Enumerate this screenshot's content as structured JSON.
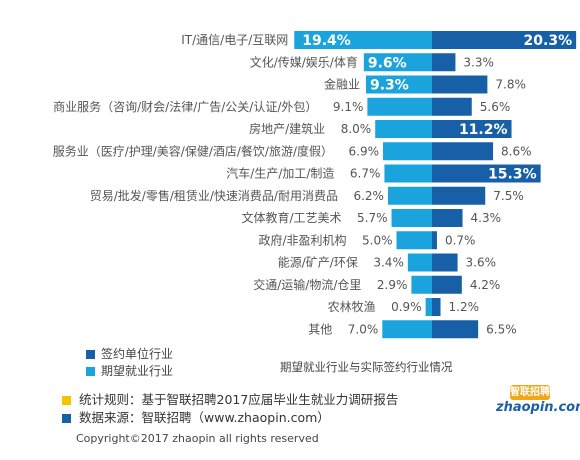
{
  "chart_data": {
    "type": "bar",
    "categories": [
      "IT/通信/电子/互联网",
      "文化/传媒/娱乐/体育",
      "金融业",
      "商业服务（咨询/财会/法律/广告/公关/认证/外包）",
      "房地产/建筑业",
      "服务业（医疗/护理/美容/保健/酒店/餐饮/旅游/度假）",
      "汽车/生产/加工/制造",
      "贸易/批发/零售/租赁业/快速消费品/耐用消费品",
      "文体教育/工艺美术",
      "政府/非盈利机构",
      "能源/矿产/环保",
      "交通/运输/物流/仓里",
      "农林牧渔",
      "其他"
    ],
    "series": [
      {
        "name": "期望就业行业",
        "values": [
          19.4,
          9.6,
          9.3,
          9.1,
          8.0,
          6.9,
          6.7,
          6.2,
          5.7,
          5.0,
          3.4,
          2.9,
          0.9,
          7.0
        ],
        "labels": [
          "19.4%",
          "9.6%",
          "9.3%",
          "9.1%",
          "8.0%",
          "6.9%",
          "6.7%",
          "6.2%",
          "5.7%",
          "5.0%",
          "3.4%",
          "2.9%",
          "0.9%",
          "7.0%"
        ],
        "highlight": [
          true,
          true,
          true,
          false,
          false,
          false,
          false,
          false,
          false,
          false,
          false,
          false,
          false,
          false
        ]
      },
      {
        "name": "签约单位行业",
        "values": [
          20.3,
          3.3,
          7.8,
          5.6,
          11.2,
          8.6,
          15.3,
          7.5,
          4.3,
          0.7,
          3.6,
          4.2,
          1.2,
          6.5
        ],
        "labels": [
          "20.3%",
          "3.3%",
          "7.8%",
          "5.6%",
          "11.2%",
          "8.6%",
          "15.3%",
          "7.5%",
          "4.3%",
          "0.7%",
          "3.6%",
          "4.2%",
          "1.2%",
          "6.5%"
        ],
        "highlight": [
          true,
          false,
          false,
          false,
          true,
          false,
          true,
          false,
          false,
          false,
          false,
          false,
          false,
          false
        ]
      }
    ],
    "colors": {
      "expected": "#1ba3dd",
      "signed": "#1760a8"
    },
    "title": "期望就业行业与实际签约行业情况",
    "legend": [
      "签约单位行业",
      "期望就业行业"
    ],
    "legend_position": "bottom-left"
  },
  "footer": {
    "note1": "统计规则：基于智联招聘2017应届毕业生就业力调研报告",
    "note2": "数据来源：智联招聘（www.zhaopin.com）",
    "copyright": "Copyright©2017 zhaopin all rights reserved",
    "note1_color": "#f5c400",
    "note2_color": "#1760a8"
  },
  "logo": {
    "mark": "智联招聘",
    "word": "zhaopin.com"
  }
}
